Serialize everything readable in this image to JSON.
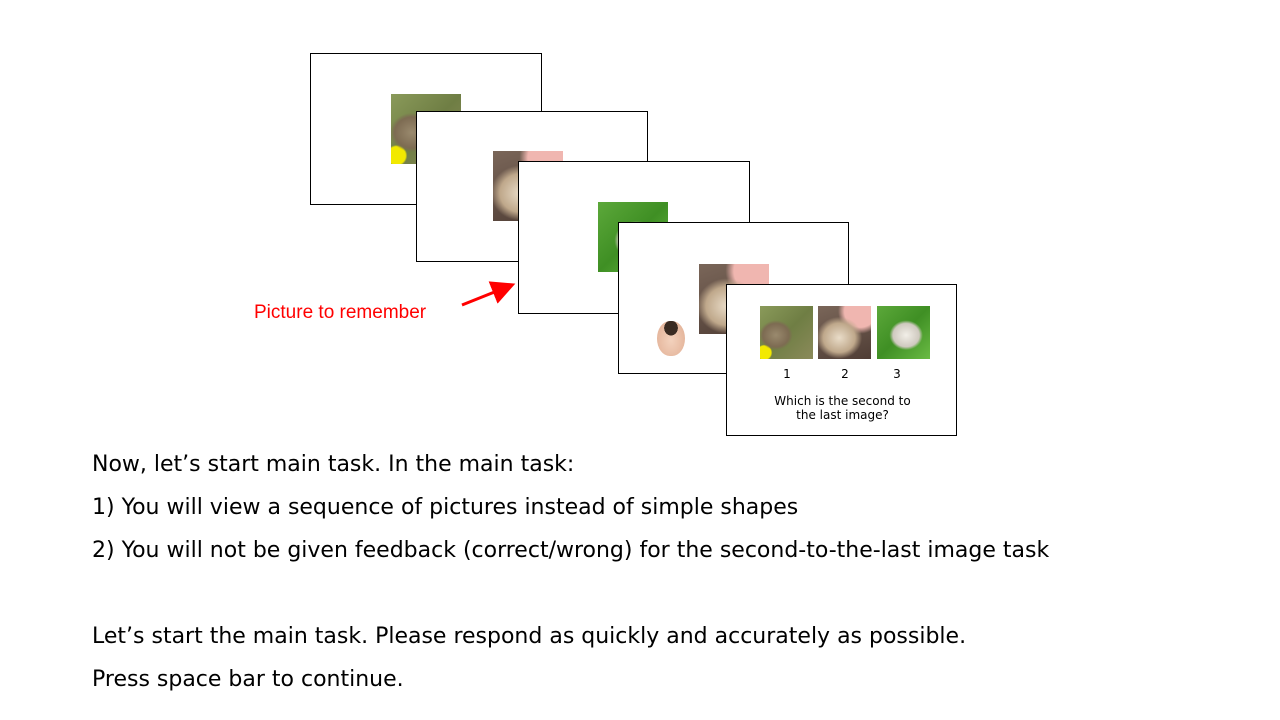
{
  "figure": {
    "callout_label": "Picture to remember",
    "choice_labels": [
      "1",
      "2",
      "3"
    ],
    "question_line1": "Which is the second to",
    "question_line2": "the last image?",
    "accent_color": "#ff0000"
  },
  "instructions": {
    "line1": "Now, let’s start main task. In the main task:",
    "line2": "1) You will view a sequence of pictures instead of simple shapes",
    "line3": "2) You will not be given feedback (correct/wrong) for the second-to-the-last image task",
    "line4": "Let’s start the main task. Please respond as quickly and accurately as possible.",
    "line5": "Press space bar to continue."
  }
}
